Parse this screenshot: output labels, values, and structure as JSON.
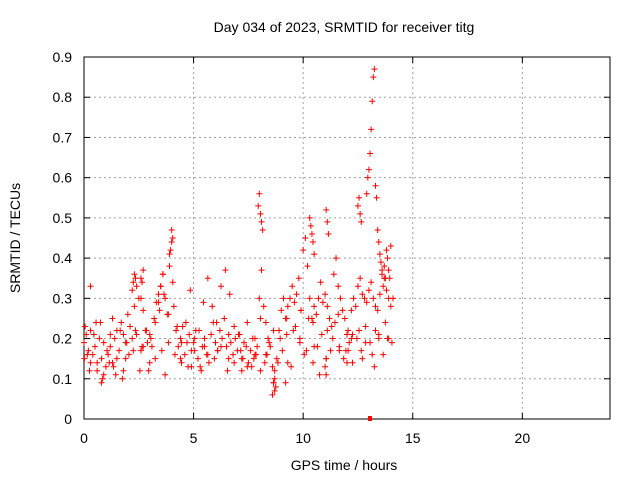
{
  "chart_data": {
    "type": "scatter",
    "title": "Day 034 of 2023, SRMTID for receiver titg",
    "xlabel": "GPS time / hours",
    "ylabel": "SRMTID / TECUs",
    "xlim": [
      0,
      24
    ],
    "ylim": [
      0,
      0.9
    ],
    "xticks": [
      0,
      5,
      10,
      15,
      20
    ],
    "xtick_labels": [
      "0",
      "5",
      "10",
      "15",
      "20"
    ],
    "yticks": [
      0,
      0.1,
      0.2,
      0.3,
      0.4,
      0.5,
      0.6,
      0.7,
      0.8,
      0.9
    ],
    "ytick_labels": [
      "0",
      "0.1",
      "0.2",
      "0.3",
      "0.4",
      "0.5",
      "0.6",
      "0.7",
      "0.8",
      "0.9"
    ],
    "grid": true,
    "marker": "+",
    "color": "#ff0000",
    "series": [
      {
        "name": "SRMTID",
        "x": [
          0.0,
          0.1,
          0.2,
          0.3,
          0.4,
          0.5,
          0.6,
          0.7,
          0.8,
          0.9,
          1.0,
          1.1,
          1.2,
          1.3,
          1.4,
          1.5,
          1.6,
          1.7,
          1.8,
          1.9,
          2.0,
          2.1,
          2.2,
          2.3,
          2.4,
          2.5,
          2.6,
          2.7,
          2.8,
          2.9,
          3.0,
          3.1,
          3.2,
          3.3,
          3.4,
          3.5,
          3.6,
          3.7,
          3.8,
          3.9,
          4.0,
          4.1,
          4.2,
          4.3,
          4.4,
          4.5,
          4.6,
          4.7,
          4.8,
          4.9,
          5.0,
          5.1,
          5.2,
          5.3,
          5.4,
          5.5,
          5.6,
          5.7,
          5.8,
          5.9,
          6.0,
          6.1,
          6.2,
          6.3,
          6.4,
          6.5,
          6.6,
          6.7,
          6.8,
          6.9,
          7.0,
          7.1,
          7.2,
          7.3,
          7.4,
          7.5,
          7.6,
          7.7,
          7.8,
          7.9,
          8.0,
          8.1,
          8.2,
          8.3,
          8.4,
          8.5,
          8.6,
          8.7,
          8.8,
          8.9,
          9.0,
          9.1,
          9.2,
          9.3,
          9.4,
          9.5,
          9.6,
          9.7,
          9.8,
          9.9,
          10.0,
          10.1,
          10.2,
          10.3,
          10.4,
          10.5,
          10.6,
          10.7,
          10.8,
          10.9,
          11.0,
          11.1,
          11.2,
          11.3,
          11.4,
          11.5,
          11.6,
          11.7,
          11.8,
          11.9,
          12.0,
          12.1,
          12.2,
          12.3,
          12.4,
          12.5,
          12.6,
          12.7,
          12.8,
          12.9,
          13.0,
          13.1,
          13.2,
          13.3,
          13.4,
          13.5,
          13.6,
          13.7,
          13.8,
          13.9,
          14.0,
          14.1,
          0.05,
          0.15,
          0.3,
          0.45,
          0.6,
          0.75,
          0.9,
          1.05,
          1.2,
          1.35,
          1.5,
          1.65,
          1.8,
          1.95,
          2.1,
          2.25,
          2.4,
          2.55,
          2.7,
          2.85,
          3.05,
          3.25,
          3.45,
          3.65,
          3.85,
          4.05,
          4.25,
          4.45,
          4.65,
          4.85,
          5.05,
          5.25,
          5.45,
          5.65,
          5.85,
          6.05,
          6.25,
          6.45,
          6.65,
          6.85,
          7.05,
          7.25,
          7.45,
          7.65,
          7.85,
          8.05,
          8.25,
          8.45,
          8.65,
          8.85,
          9.05,
          9.25,
          9.45,
          9.65,
          9.85,
          10.05,
          10.25,
          10.45,
          10.65,
          10.85,
          11.05,
          11.25,
          11.45,
          11.65,
          11.85,
          12.05,
          12.25,
          12.45,
          12.65,
          12.85,
          13.05,
          13.25,
          13.45,
          13.65,
          13.85,
          0.02,
          0.25,
          0.55,
          0.85,
          1.15,
          1.45,
          1.75,
          2.05,
          2.35,
          2.65,
          2.95,
          3.25,
          3.55,
          3.85,
          4.15,
          4.45,
          4.75,
          5.05,
          5.35,
          5.65,
          5.95,
          6.25,
          6.55,
          6.85,
          7.15,
          7.45,
          7.75,
          8.05,
          8.35,
          8.65,
          8.95,
          9.25,
          9.55,
          9.85,
          10.15,
          10.45,
          10.75,
          11.05,
          11.35,
          11.65,
          11.95,
          12.25,
          12.55,
          12.85,
          13.15,
          13.45,
          13.75,
          14.05,
          2.2,
          2.25,
          2.3,
          2.35,
          2.6,
          2.65,
          2.7,
          3.4,
          3.5,
          3.6,
          3.9,
          3.95,
          4.0,
          4.05,
          7.95,
          8.0,
          8.05,
          8.1,
          8.15,
          10.3,
          10.35,
          10.4,
          10.45,
          10.5,
          11.05,
          11.1,
          11.15,
          12.5,
          12.55,
          12.6,
          12.65,
          12.9,
          12.95,
          13.0,
          13.05,
          13.1,
          13.15,
          13.2,
          13.25,
          13.3,
          13.35,
          13.4,
          13.45,
          13.5,
          13.55,
          13.6,
          13.65,
          13.7,
          13.75,
          13.8,
          13.85,
          13.9,
          13.95,
          14.0,
          0.3,
          0.8,
          1.3,
          1.9,
          2.6,
          3.0,
          3.7,
          4.4,
          4.9,
          5.5,
          6.1,
          6.6,
          7.2,
          7.8,
          8.3,
          8.7,
          9.3,
          9.9,
          10.5,
          11.1,
          11.6,
          12.2,
          12.7,
          13.3,
          13.9,
          8.6,
          8.65,
          8.7,
          8.75,
          9.2,
          11.0,
          11.05,
          12.0,
          12.05
        ],
        "y": [
          0.19,
          0.21,
          0.17,
          0.22,
          0.16,
          0.18,
          0.14,
          0.2,
          0.15,
          0.19,
          0.13,
          0.16,
          0.18,
          0.14,
          0.2,
          0.22,
          0.17,
          0.24,
          0.21,
          0.19,
          0.26,
          0.23,
          0.2,
          0.28,
          0.33,
          0.3,
          0.35,
          0.27,
          0.22,
          0.19,
          0.21,
          0.18,
          0.25,
          0.29,
          0.31,
          0.33,
          0.36,
          0.3,
          0.26,
          0.41,
          0.44,
          0.28,
          0.22,
          0.18,
          0.2,
          0.23,
          0.16,
          0.19,
          0.21,
          0.17,
          0.19,
          0.22,
          0.15,
          0.13,
          0.18,
          0.2,
          0.16,
          0.14,
          0.21,
          0.24,
          0.19,
          0.17,
          0.22,
          0.2,
          0.25,
          0.18,
          0.21,
          0.19,
          0.16,
          0.2,
          0.17,
          0.21,
          0.15,
          0.19,
          0.18,
          0.14,
          0.17,
          0.2,
          0.16,
          0.18,
          0.3,
          0.37,
          0.28,
          0.24,
          0.2,
          0.18,
          0.13,
          0.1,
          0.15,
          0.22,
          0.27,
          0.3,
          0.25,
          0.28,
          0.3,
          0.33,
          0.29,
          0.31,
          0.35,
          0.27,
          0.42,
          0.45,
          0.38,
          0.3,
          0.25,
          0.28,
          0.26,
          0.3,
          0.34,
          0.29,
          0.31,
          0.28,
          0.25,
          0.23,
          0.36,
          0.4,
          0.33,
          0.3,
          0.27,
          0.25,
          0.21,
          0.19,
          0.27,
          0.3,
          0.28,
          0.33,
          0.35,
          0.31,
          0.3,
          0.29,
          0.32,
          0.34,
          0.3,
          0.28,
          0.27,
          0.31,
          0.37,
          0.35,
          0.32,
          0.3,
          0.28,
          0.3,
          0.23,
          0.16,
          0.14,
          0.21,
          0.12,
          0.24,
          0.11,
          0.17,
          0.21,
          0.13,
          0.15,
          0.22,
          0.12,
          0.19,
          0.23,
          0.17,
          0.21,
          0.12,
          0.18,
          0.22,
          0.2,
          0.24,
          0.27,
          0.31,
          0.26,
          0.34,
          0.23,
          0.19,
          0.24,
          0.32,
          0.17,
          0.22,
          0.29,
          0.35,
          0.28,
          0.24,
          0.33,
          0.37,
          0.31,
          0.23,
          0.21,
          0.15,
          0.24,
          0.13,
          0.16,
          0.25,
          0.14,
          0.19,
          0.22,
          0.14,
          0.17,
          0.21,
          0.13,
          0.23,
          0.19,
          0.16,
          0.25,
          0.14,
          0.18,
          0.21,
          0.15,
          0.17,
          0.24,
          0.17,
          0.15,
          0.22,
          0.14,
          0.2,
          0.17,
          0.23,
          0.19,
          0.13,
          0.21,
          0.16,
          0.2,
          0.15,
          0.12,
          0.24,
          0.1,
          0.14,
          0.11,
          0.1,
          0.16,
          0.22,
          0.18,
          0.12,
          0.15,
          0.17,
          0.19,
          0.16,
          0.14,
          0.13,
          0.2,
          0.12,
          0.16,
          0.15,
          0.18,
          0.12,
          0.14,
          0.17,
          0.13,
          0.15,
          0.12,
          0.16,
          0.09,
          0.2,
          0.25,
          0.22,
          0.2,
          0.17,
          0.24,
          0.11,
          0.15,
          0.2,
          0.18,
          0.17,
          0.21,
          0.22,
          0.19,
          0.16,
          0.2,
          0.24,
          0.19,
          0.32,
          0.34,
          0.36,
          0.35,
          0.3,
          0.34,
          0.37,
          0.29,
          0.33,
          0.36,
          0.38,
          0.42,
          0.47,
          0.45,
          0.53,
          0.56,
          0.51,
          0.49,
          0.47,
          0.5,
          0.48,
          0.46,
          0.44,
          0.41,
          0.52,
          0.49,
          0.46,
          0.53,
          0.55,
          0.51,
          0.49,
          0.56,
          0.6,
          0.62,
          0.66,
          0.72,
          0.79,
          0.85,
          0.87,
          0.58,
          0.55,
          0.47,
          0.44,
          0.41,
          0.39,
          0.36,
          0.33,
          0.38,
          0.35,
          0.42,
          0.4,
          0.37,
          0.35,
          0.43,
          0.33,
          0.09,
          0.25,
          0.15,
          0.17,
          0.14,
          0.11,
          0.15,
          0.13,
          0.18,
          0.17,
          0.15,
          0.12,
          0.2,
          0.16,
          0.07,
          0.14,
          0.27,
          0.18,
          0.22,
          0.26,
          0.2,
          0.15,
          0.22,
          0.2,
          0.06,
          0.09,
          0.12,
          0.08,
          0.09,
          0.13,
          0.11,
          0.14,
          0.17
        ],
        "outlier": {
          "x": 13.05,
          "y": 0.0
        }
      }
    ]
  }
}
